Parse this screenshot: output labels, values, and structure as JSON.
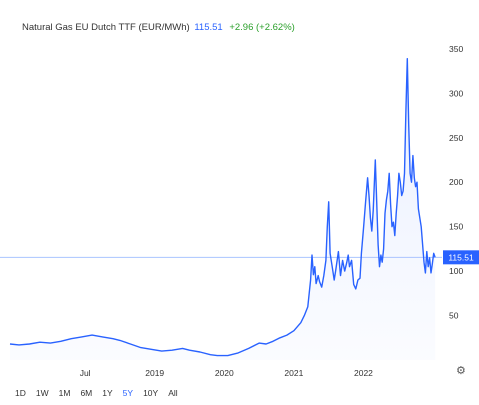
{
  "header": {
    "name": "Natural Gas EU Dutch TTF (EUR/MWh)",
    "price": "115.51",
    "change": "+2.96 (+2.62%)"
  },
  "current_label": "115.51",
  "range_buttons": [
    {
      "label": "1D",
      "active": false
    },
    {
      "label": "1W",
      "active": false
    },
    {
      "label": "1M",
      "active": false
    },
    {
      "label": "6M",
      "active": false
    },
    {
      "label": "1Y",
      "active": false
    },
    {
      "label": "5Y",
      "active": true
    },
    {
      "label": "10Y",
      "active": false
    },
    {
      "label": "All",
      "active": false
    }
  ],
  "settings_icon": "gear-icon",
  "colors": {
    "line": "#2962ff",
    "fill": "#2962ff",
    "price_tag": "#2962ff",
    "change_up": "#2ca02c"
  },
  "chart_data": {
    "type": "area",
    "series": [
      {
        "values": [
          [
            2017.42,
            18
          ],
          [
            2017.55,
            17
          ],
          [
            2017.7,
            18
          ],
          [
            2017.85,
            20
          ],
          [
            2018.0,
            19
          ],
          [
            2018.15,
            21
          ],
          [
            2018.3,
            24
          ],
          [
            2018.45,
            26
          ],
          [
            2018.6,
            28
          ],
          [
            2018.75,
            26
          ],
          [
            2018.9,
            24
          ],
          [
            2019.0,
            22
          ],
          [
            2019.15,
            18
          ],
          [
            2019.3,
            14
          ],
          [
            2019.45,
            12
          ],
          [
            2019.6,
            10
          ],
          [
            2019.75,
            11
          ],
          [
            2019.9,
            13
          ],
          [
            2020.0,
            11
          ],
          [
            2020.15,
            9
          ],
          [
            2020.3,
            6
          ],
          [
            2020.4,
            5
          ],
          [
            2020.55,
            5
          ],
          [
            2020.7,
            8
          ],
          [
            2020.85,
            13
          ],
          [
            2021.0,
            19
          ],
          [
            2021.1,
            18
          ],
          [
            2021.2,
            21
          ],
          [
            2021.3,
            25
          ],
          [
            2021.4,
            28
          ],
          [
            2021.5,
            33
          ],
          [
            2021.6,
            42
          ],
          [
            2021.65,
            50
          ],
          [
            2021.7,
            60
          ],
          [
            2021.72,
            75
          ],
          [
            2021.74,
            90
          ],
          [
            2021.76,
            118
          ],
          [
            2021.78,
            96
          ],
          [
            2021.8,
            105
          ],
          [
            2021.82,
            86
          ],
          [
            2021.85,
            95
          ],
          [
            2021.87,
            88
          ],
          [
            2021.9,
            82
          ],
          [
            2021.93,
            95
          ],
          [
            2021.96,
            112
          ],
          [
            2021.98,
            150
          ],
          [
            2022.0,
            178
          ],
          [
            2022.02,
            120
          ],
          [
            2022.05,
            105
          ],
          [
            2022.08,
            90
          ],
          [
            2022.1,
            100
          ],
          [
            2022.14,
            122
          ],
          [
            2022.17,
            95
          ],
          [
            2022.2,
            112
          ],
          [
            2022.23,
            100
          ],
          [
            2022.26,
            110
          ],
          [
            2022.28,
            118
          ],
          [
            2022.3,
            105
          ],
          [
            2022.33,
            112
          ],
          [
            2022.36,
            85
          ],
          [
            2022.39,
            80
          ],
          [
            2022.42,
            90
          ],
          [
            2022.45,
            92
          ],
          [
            2022.47,
            120
          ],
          [
            2022.5,
            148
          ],
          [
            2022.53,
            178
          ],
          [
            2022.56,
            205
          ],
          [
            2022.58,
            185
          ],
          [
            2022.6,
            160
          ],
          [
            2022.62,
            145
          ],
          [
            2022.64,
            168
          ],
          [
            2022.67,
            225
          ],
          [
            2022.69,
            178
          ],
          [
            2022.71,
            130
          ],
          [
            2022.73,
            105
          ],
          [
            2022.75,
            118
          ],
          [
            2022.77,
            110
          ],
          [
            2022.79,
            125
          ],
          [
            2022.81,
            165
          ],
          [
            2022.83,
            180
          ],
          [
            2022.85,
            190
          ],
          [
            2022.87,
            210
          ],
          [
            2022.89,
            175
          ],
          [
            2022.91,
            150
          ],
          [
            2022.93,
            155
          ],
          [
            2022.95,
            140
          ],
          [
            2022.97,
            165
          ],
          [
            2022.99,
            185
          ],
          [
            2023.01,
            210
          ],
          [
            2023.03,
            200
          ],
          [
            2023.05,
            185
          ],
          [
            2023.07,
            190
          ],
          [
            2023.09,
            210
          ],
          [
            2023.11,
            280
          ],
          [
            2023.13,
            339
          ],
          [
            2023.15,
            265
          ],
          [
            2023.17,
            210
          ],
          [
            2023.19,
            200
          ],
          [
            2023.21,
            230
          ],
          [
            2023.23,
            205
          ],
          [
            2023.25,
            195
          ],
          [
            2023.27,
            200
          ],
          [
            2023.29,
            170
          ],
          [
            2023.31,
            160
          ],
          [
            2023.33,
            150
          ],
          [
            2023.35,
            130
          ],
          [
            2023.37,
            110
          ],
          [
            2023.39,
            98
          ],
          [
            2023.41,
            122
          ],
          [
            2023.43,
            105
          ],
          [
            2023.45,
            115
          ],
          [
            2023.47,
            98
          ],
          [
            2023.49,
            108
          ],
          [
            2023.51,
            120
          ],
          [
            2023.53,
            115.51
          ]
        ]
      }
    ],
    "x_tick_labels": [
      {
        "label": "Jul",
        "x": 2018.5
      },
      {
        "label": "2019",
        "x": 2019.5
      },
      {
        "label": "2020",
        "x": 2020.5
      },
      {
        "label": "2021",
        "x": 2021.5
      },
      {
        "label": "2022",
        "x": 2022.5
      }
    ],
    "y_ticks": [
      50,
      100,
      150,
      200,
      250,
      300,
      350
    ],
    "xlim": [
      2017.42,
      2023.6
    ],
    "ylim": [
      0,
      360
    ],
    "grid": false,
    "reference_line": 115.51
  }
}
